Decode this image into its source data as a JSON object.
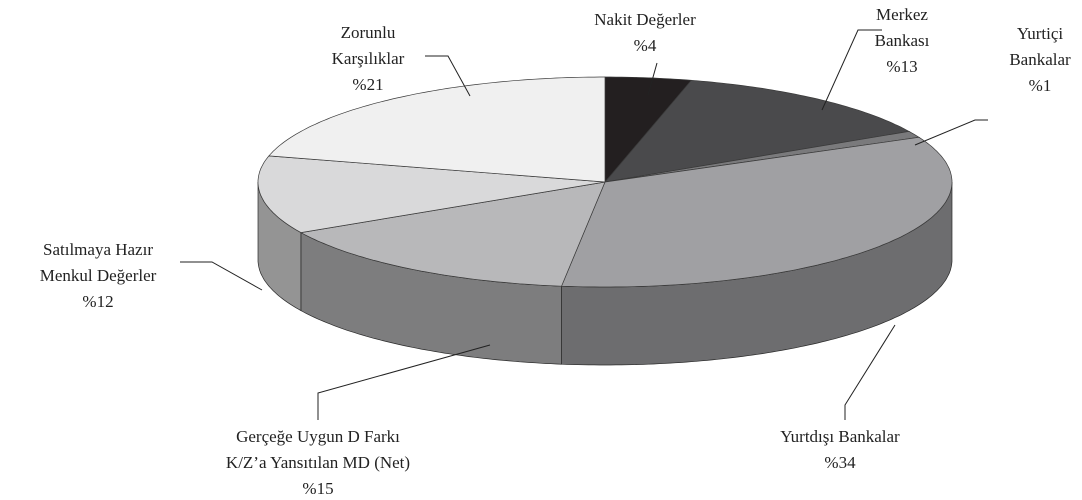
{
  "chart_data": {
    "type": "pie3d",
    "categories": [
      "Nakit Değerler",
      "Merkez\nBankası",
      "Yurtiçi\nBankalar",
      "Yurtdışı Bankalar",
      "Gerçeğe Uygun D Farkı\nK/Z’a Yansıtılan MD (Net)",
      "Satılmaya Hazır\nMenkul Değerler",
      "Zorunlu\nKarşılıklar"
    ],
    "values": [
      4,
      13,
      1,
      34,
      15,
      12,
      21
    ],
    "value_labels": [
      "%4",
      "%13",
      "%1",
      "%34",
      "%15",
      "%12",
      "%21"
    ],
    "colors": [
      "#231f20",
      "#4a4a4c",
      "#7a7a7c",
      "#a0a0a3",
      "#b8b8ba",
      "#d9d9da",
      "#f0f0f0"
    ]
  }
}
